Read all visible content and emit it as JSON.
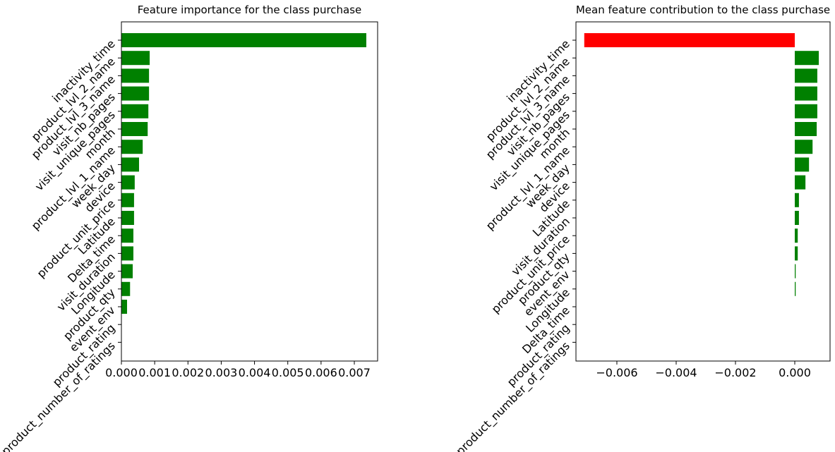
{
  "chart_data": [
    {
      "type": "barh",
      "title": "Feature importance for the class purchase",
      "categories": [
        "inactivity_time",
        "product_lvl_2_name",
        "product_lvl_3_name",
        "visit_nb_pages",
        "visit_unique_pages",
        "month",
        "product_lvl_1_name",
        "week_day",
        "device",
        "product_unit_price",
        "Latitude",
        "Delta_time",
        "visit_duration",
        "Longitude",
        "product_qty",
        "event_env",
        "product_rating",
        "product_number_of_ratings"
      ],
      "values": [
        0.00736,
        0.00085,
        0.00083,
        0.00083,
        0.00081,
        0.00079,
        0.00064,
        0.00053,
        0.0004,
        0.00038,
        0.00038,
        0.00036,
        0.00036,
        0.00034,
        0.00026,
        0.00017,
        0,
        0
      ],
      "colors": [
        "green",
        "green",
        "green",
        "green",
        "green",
        "green",
        "green",
        "green",
        "green",
        "green",
        "green",
        "green",
        "green",
        "green",
        "green",
        "green",
        "green",
        "green"
      ],
      "xlim": [
        0,
        0.0077
      ],
      "xticks": [
        {
          "value": 0,
          "label": "0.000"
        },
        {
          "value": 0.001,
          "label": "0.001"
        },
        {
          "value": 0.002,
          "label": "0.002"
        },
        {
          "value": 0.003,
          "label": "0.003"
        },
        {
          "value": 0.004,
          "label": "0.004"
        },
        {
          "value": 0.005,
          "label": "0.005"
        },
        {
          "value": 0.006,
          "label": "0.006"
        },
        {
          "value": 0.007,
          "label": "0.007"
        }
      ]
    },
    {
      "type": "barh",
      "title": "Mean feature contribution to the class purchase",
      "categories": [
        "inactivity_time",
        "product_lvl_2_name",
        "product_lvl_3_name",
        "visit_nb_pages",
        "visit_unique_pages",
        "month",
        "product_lvl_1_name",
        "week_day",
        "device",
        "Latitude",
        "visit_duration",
        "product_unit_price",
        "product_qty",
        "event_env",
        "Longitude",
        "Delta_time",
        "product_rating",
        "product_number_of_ratings"
      ],
      "values": [
        -0.0071,
        0.00081,
        0.00076,
        0.00076,
        0.00076,
        0.00074,
        0.0006,
        0.00048,
        0.00036,
        0.00014,
        0.00014,
        0.0001,
        0.0001,
        3e-05,
        3e-05,
        0,
        0,
        0
      ],
      "colors": [
        "red",
        "green",
        "green",
        "green",
        "green",
        "green",
        "green",
        "green",
        "green",
        "green",
        "green",
        "green",
        "green",
        "green",
        "green",
        "green",
        "green",
        "green"
      ],
      "xlim": [
        -0.00738,
        0.00119
      ],
      "xticks": [
        {
          "value": -0.006,
          "label": "−0.006"
        },
        {
          "value": -0.004,
          "label": "−0.004"
        },
        {
          "value": -0.002,
          "label": "−0.002"
        },
        {
          "value": 0,
          "label": "0.000"
        }
      ]
    }
  ]
}
